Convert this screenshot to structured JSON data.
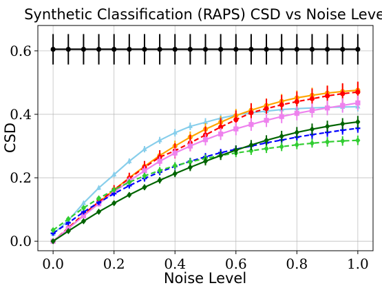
{
  "chart_data": {
    "type": "line",
    "title": "Synthetic Classification (RAPS) CSD vs Noise Level",
    "xlabel": "Noise Level",
    "ylabel": "CSD",
    "xlim": [
      -0.05,
      1.05
    ],
    "ylim": [
      -0.03,
      0.68
    ],
    "xticks": [
      0.0,
      0.2,
      0.4,
      0.6,
      0.8,
      1.0
    ],
    "xtick_labels": [
      "0.0",
      "0.2",
      "0.4",
      "0.6",
      "0.8",
      "1.0"
    ],
    "yticks": [
      0.0,
      0.2,
      0.4,
      0.6
    ],
    "ytick_labels": [
      "0.0",
      "0.2",
      "0.4",
      "0.6"
    ],
    "grid": true,
    "legend": false,
    "x": [
      0.0,
      0.05,
      0.1,
      0.15,
      0.2,
      0.25,
      0.3,
      0.35,
      0.4,
      0.45,
      0.5,
      0.55,
      0.6,
      0.65,
      0.7,
      0.75,
      0.8,
      0.85,
      0.9,
      0.95,
      1.0
    ],
    "series": [
      {
        "color": "#000000",
        "line": "solid",
        "marker": "circle",
        "values": [
          0.605,
          0.605,
          0.605,
          0.605,
          0.605,
          0.605,
          0.605,
          0.605,
          0.605,
          0.605,
          0.605,
          0.605,
          0.605,
          0.605,
          0.605,
          0.605,
          0.605,
          0.605,
          0.605,
          0.605,
          0.605
        ],
        "errors": [
          0.048,
          0.048,
          0.048,
          0.048,
          0.048,
          0.048,
          0.048,
          0.048,
          0.048,
          0.048,
          0.048,
          0.048,
          0.048,
          0.048,
          0.048,
          0.048,
          0.048,
          0.048,
          0.048,
          0.048,
          0.048
        ]
      },
      {
        "color": "#87ceeb",
        "line": "solid",
        "marker": "triangle",
        "values": [
          0.023,
          0.065,
          0.12,
          0.168,
          0.21,
          0.252,
          0.29,
          0.318,
          0.342,
          0.362,
          0.375,
          0.388,
          0.398,
          0.405,
          0.41,
          0.415,
          0.418,
          0.42,
          0.422,
          0.423,
          0.424
        ],
        "errors": [
          0.004,
          0.005,
          0.006,
          0.007,
          0.008,
          0.009,
          0.01,
          0.011,
          0.012,
          0.012,
          0.013,
          0.013,
          0.014,
          0.014,
          0.014,
          0.014,
          0.015,
          0.015,
          0.015,
          0.015,
          0.015
        ]
      },
      {
        "color": "#ffa500",
        "line": "solid",
        "marker": "circle",
        "values": [
          0.0,
          0.04,
          0.082,
          0.122,
          0.162,
          0.2,
          0.236,
          0.27,
          0.3,
          0.328,
          0.353,
          0.375,
          0.396,
          0.413,
          0.428,
          0.441,
          0.452,
          0.46,
          0.467,
          0.472,
          0.476
        ],
        "errors": [
          0.003,
          0.006,
          0.008,
          0.01,
          0.012,
          0.014,
          0.015,
          0.016,
          0.017,
          0.018,
          0.019,
          0.02,
          0.021,
          0.022,
          0.022,
          0.023,
          0.023,
          0.024,
          0.024,
          0.024,
          0.025
        ]
      },
      {
        "color": "#ff0000",
        "line": "dashed",
        "marker": "circle",
        "values": [
          0.0,
          0.042,
          0.085,
          0.124,
          0.162,
          0.198,
          0.233,
          0.265,
          0.285,
          0.31,
          0.335,
          0.36,
          0.383,
          0.405,
          0.418,
          0.43,
          0.44,
          0.449,
          0.458,
          0.465,
          0.47
        ],
        "errors": [
          0.003,
          0.006,
          0.009,
          0.012,
          0.015,
          0.018,
          0.02,
          0.022,
          0.024,
          0.026,
          0.027,
          0.028,
          0.029,
          0.03,
          0.031,
          0.031,
          0.032,
          0.032,
          0.032,
          0.033,
          0.033
        ]
      },
      {
        "color": "#ee82ee",
        "line": "solid",
        "marker": "square",
        "values": [
          0.0,
          0.04,
          0.08,
          0.118,
          0.155,
          0.19,
          0.222,
          0.252,
          0.278,
          0.3,
          0.32,
          0.338,
          0.354,
          0.368,
          0.381,
          0.393,
          0.403,
          0.412,
          0.42,
          0.428,
          0.436
        ],
        "errors": [
          0.003,
          0.005,
          0.007,
          0.009,
          0.011,
          0.013,
          0.014,
          0.015,
          0.016,
          0.017,
          0.018,
          0.019,
          0.02,
          0.02,
          0.021,
          0.021,
          0.022,
          0.022,
          0.023,
          0.023,
          0.023
        ]
      },
      {
        "color": "#0000ff",
        "line": "dashed",
        "marker": "plus",
        "values": [
          0.025,
          0.058,
          0.092,
          0.122,
          0.15,
          0.175,
          0.198,
          0.218,
          0.236,
          0.252,
          0.266,
          0.279,
          0.29,
          0.3,
          0.31,
          0.319,
          0.328,
          0.336,
          0.343,
          0.35,
          0.356
        ],
        "errors": [
          0.004,
          0.005,
          0.006,
          0.007,
          0.008,
          0.009,
          0.01,
          0.01,
          0.011,
          0.011,
          0.012,
          0.012,
          0.012,
          0.013,
          0.013,
          0.013,
          0.013,
          0.014,
          0.014,
          0.014,
          0.014
        ]
      },
      {
        "color": "#32cd32",
        "line": "dashed",
        "marker": "diamond",
        "values": [
          0.035,
          0.07,
          0.105,
          0.135,
          0.162,
          0.186,
          0.206,
          0.223,
          0.238,
          0.25,
          0.261,
          0.27,
          0.278,
          0.285,
          0.292,
          0.298,
          0.304,
          0.309,
          0.313,
          0.316,
          0.318
        ],
        "errors": [
          0.004,
          0.005,
          0.006,
          0.007,
          0.008,
          0.009,
          0.01,
          0.011,
          0.011,
          0.012,
          0.012,
          0.013,
          0.013,
          0.013,
          0.014,
          0.014,
          0.014,
          0.014,
          0.015,
          0.015,
          0.015
        ]
      },
      {
        "color": "#006400",
        "line": "solid",
        "marker": "diamond",
        "values": [
          0.0,
          0.032,
          0.063,
          0.093,
          0.12,
          0.146,
          0.17,
          0.192,
          0.213,
          0.233,
          0.252,
          0.27,
          0.287,
          0.303,
          0.318,
          0.331,
          0.343,
          0.353,
          0.362,
          0.37,
          0.376
        ],
        "errors": [
          0.003,
          0.004,
          0.005,
          0.006,
          0.007,
          0.008,
          0.009,
          0.01,
          0.011,
          0.012,
          0.013,
          0.014,
          0.015,
          0.016,
          0.016,
          0.017,
          0.017,
          0.018,
          0.018,
          0.018,
          0.019
        ]
      }
    ]
  }
}
